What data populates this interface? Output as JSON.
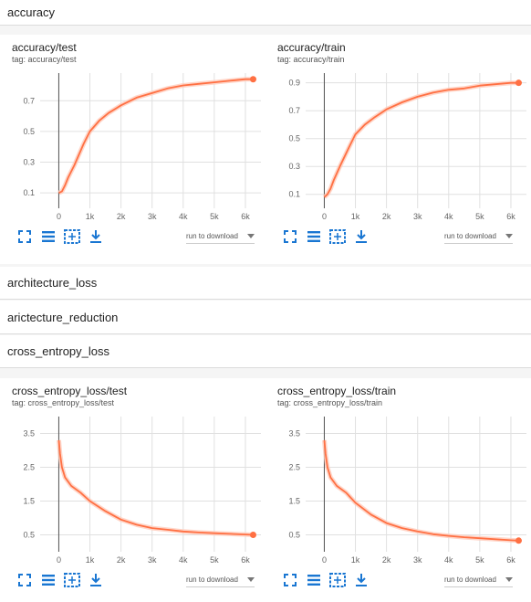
{
  "sections": {
    "accuracy": "accuracy",
    "architecture_loss": "architecture_loss",
    "aricteture_reduction": "arictecture_reduction",
    "cross_entropy_loss": "cross_entropy_loss"
  },
  "toolbar": {
    "run_to_download": "run to download"
  },
  "colors": {
    "line": "#ff7043",
    "smooth_raw": "#ffccbc",
    "grid": "#e0e0e0",
    "axis": "#555555",
    "icon": "#1976d2"
  },
  "chart_data": [
    {
      "type": "line",
      "title": "accuracy/test",
      "tag": "tag: accuracy/test",
      "xlabel": "",
      "ylabel": "",
      "xlim": [
        -600,
        6500
      ],
      "ylim": [
        0,
        0.88
      ],
      "x_ticks": [
        0,
        1000,
        2000,
        3000,
        4000,
        5000,
        6000
      ],
      "x_tick_labels": [
        "0",
        "1k",
        "2k",
        "3k",
        "4k",
        "5k",
        "6k"
      ],
      "y_ticks": [
        0.1,
        0.3,
        0.5,
        0.7
      ],
      "y_tick_labels": [
        "0.1",
        "0.3",
        "0.5",
        "0.7"
      ],
      "series": [
        {
          "x": [
            0,
            100,
            200,
            300,
            500,
            800,
            1000,
            1300,
            1600,
            2000,
            2500,
            3000,
            3500,
            4000,
            4500,
            5000,
            5500,
            6000,
            6250
          ],
          "y": [
            0.1,
            0.11,
            0.15,
            0.2,
            0.28,
            0.42,
            0.5,
            0.57,
            0.62,
            0.67,
            0.72,
            0.75,
            0.78,
            0.8,
            0.81,
            0.82,
            0.83,
            0.84,
            0.84
          ]
        }
      ]
    },
    {
      "type": "line",
      "title": "accuracy/train",
      "tag": "tag: accuracy/train",
      "xlabel": "",
      "ylabel": "",
      "xlim": [
        -600,
        6500
      ],
      "ylim": [
        0,
        0.97
      ],
      "x_ticks": [
        0,
        1000,
        2000,
        3000,
        4000,
        5000,
        6000
      ],
      "x_tick_labels": [
        "0",
        "1k",
        "2k",
        "3k",
        "4k",
        "5k",
        "6k"
      ],
      "y_ticks": [
        0.1,
        0.3,
        0.5,
        0.7,
        0.9
      ],
      "y_tick_labels": [
        "0.1",
        "0.3",
        "0.5",
        "0.7",
        "0.9"
      ],
      "series": [
        {
          "x": [
            0,
            100,
            200,
            300,
            500,
            800,
            1000,
            1300,
            1600,
            2000,
            2500,
            3000,
            3500,
            4000,
            4500,
            5000,
            5500,
            6000,
            6250
          ],
          "y": [
            0.08,
            0.1,
            0.14,
            0.2,
            0.3,
            0.44,
            0.53,
            0.6,
            0.65,
            0.71,
            0.76,
            0.8,
            0.83,
            0.85,
            0.86,
            0.88,
            0.89,
            0.9,
            0.9
          ]
        }
      ]
    },
    {
      "type": "line",
      "title": "cross_entropy_loss/test",
      "tag": "tag: cross_entropy_loss/test",
      "xlabel": "",
      "ylabel": "",
      "xlim": [
        -600,
        6500
      ],
      "ylim": [
        0,
        4.0
      ],
      "x_ticks": [
        0,
        1000,
        2000,
        3000,
        4000,
        5000,
        6000
      ],
      "x_tick_labels": [
        "0",
        "1k",
        "2k",
        "3k",
        "4k",
        "5k",
        "6k"
      ],
      "y_ticks": [
        0.5,
        1.5,
        2.5,
        3.5
      ],
      "y_tick_labels": [
        "0.5",
        "1.5",
        "2.5",
        "3.5"
      ],
      "series": [
        {
          "x": [
            0,
            40,
            100,
            200,
            400,
            700,
            1000,
            1500,
            2000,
            2500,
            3000,
            3500,
            4000,
            4500,
            5000,
            5500,
            6000,
            6250
          ],
          "y": [
            3.3,
            2.9,
            2.5,
            2.2,
            1.95,
            1.75,
            1.5,
            1.2,
            0.95,
            0.8,
            0.7,
            0.65,
            0.6,
            0.57,
            0.55,
            0.53,
            0.51,
            0.5
          ]
        }
      ]
    },
    {
      "type": "line",
      "title": "cross_entropy_loss/train",
      "tag": "tag: cross_entropy_loss/train",
      "xlabel": "",
      "ylabel": "",
      "xlim": [
        -600,
        6500
      ],
      "ylim": [
        0,
        4.0
      ],
      "x_ticks": [
        0,
        1000,
        2000,
        3000,
        4000,
        5000,
        6000
      ],
      "x_tick_labels": [
        "0",
        "1k",
        "2k",
        "3k",
        "4k",
        "5k",
        "6k"
      ],
      "y_ticks": [
        0.5,
        1.5,
        2.5,
        3.5
      ],
      "y_tick_labels": [
        "0.5",
        "1.5",
        "2.5",
        "3.5"
      ],
      "series": [
        {
          "x": [
            0,
            40,
            100,
            200,
            400,
            700,
            1000,
            1500,
            2000,
            2500,
            3000,
            3500,
            4000,
            4500,
            5000,
            5500,
            6000,
            6250
          ],
          "y": [
            3.3,
            2.9,
            2.5,
            2.2,
            1.95,
            1.75,
            1.45,
            1.1,
            0.85,
            0.7,
            0.6,
            0.52,
            0.47,
            0.43,
            0.4,
            0.37,
            0.34,
            0.33
          ]
        }
      ]
    }
  ]
}
